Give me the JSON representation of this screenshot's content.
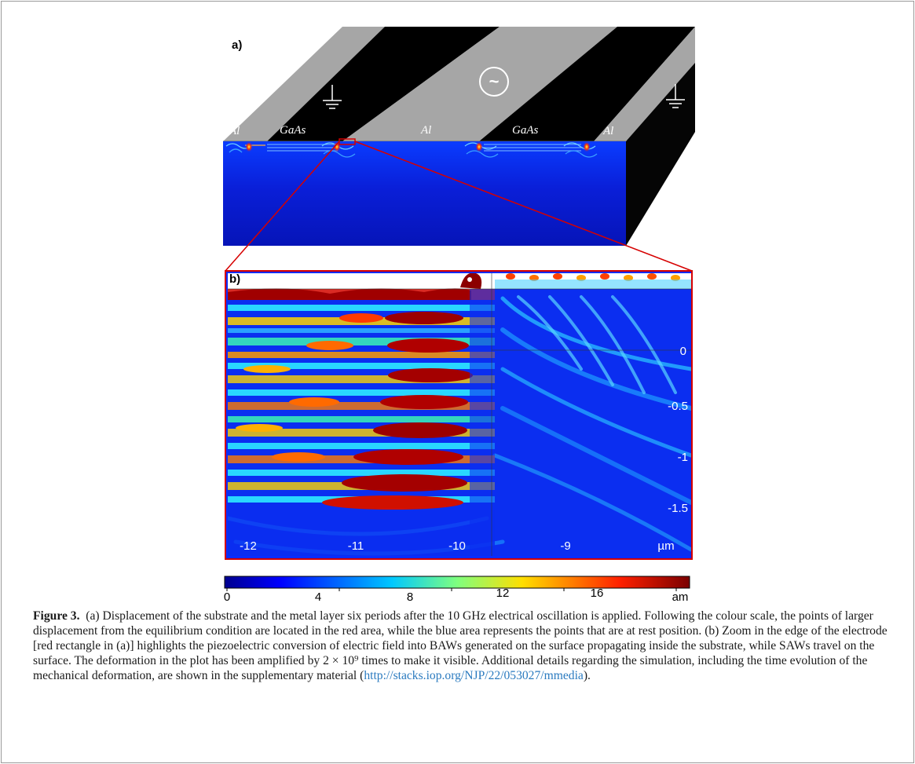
{
  "panel_a": {
    "label": "a)",
    "material_labels": [
      "Al",
      "GaAs",
      "Al",
      "GaAs",
      "Al"
    ],
    "ac_source_symbol": "~",
    "ground_symbol": "ground-icon"
  },
  "panel_b": {
    "label": "b)",
    "y_ticks": [
      "0",
      "-0.5",
      "-1",
      "-1.5"
    ],
    "x_ticks": [
      "-12",
      "-11",
      "-10",
      "-9"
    ],
    "unit": "µm"
  },
  "colorbar": {
    "ticks": [
      "0",
      "4",
      "8",
      "12",
      "16"
    ],
    "unit": "am",
    "colormap": [
      "#00008f",
      "#0020ff",
      "#00c8ff",
      "#7fff7f",
      "#ffdf00",
      "#ff3000",
      "#800000"
    ]
  },
  "caption": {
    "label": "Figure 3.",
    "text": "(a) Displacement of the substrate and the metal layer six periods after the 10 GHz electrical oscillation is applied. Following the colour scale, the points of larger displacement from the equilibrium condition are located in the red area, while the blue area represents the points that are at rest position. (b) Zoom in the edge of the electrode [red rectangle in (a)] highlights the piezoelectric conversion of electric field into BAWs generated on the surface propagating inside the substrate, while SAWs travel on the surface. The deformation in the plot has been amplified by 2 × 10⁹ times to make it visible. Additional details regarding the simulation, including the time evolution of the mechanical deformation, are shown in the supplementary material (",
    "link": "http://stacks.iop.org/NJP/22/053027/mmedia",
    "tail": ")."
  }
}
